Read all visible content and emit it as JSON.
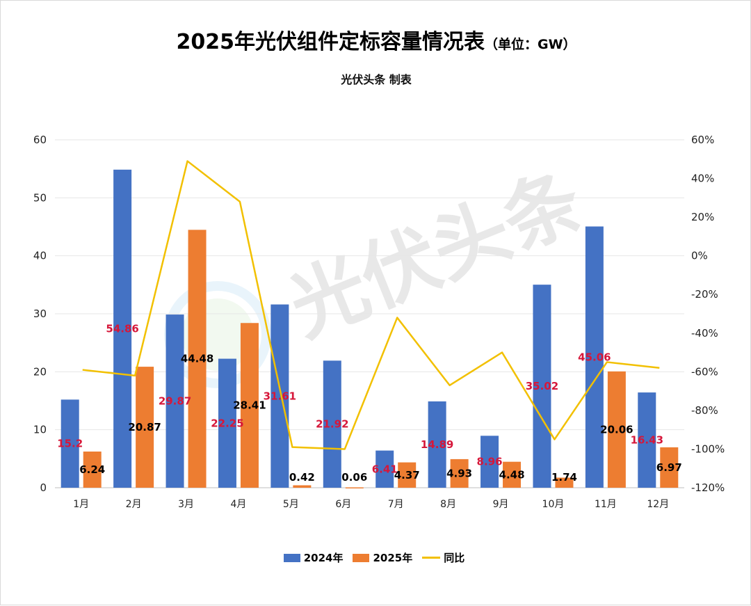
{
  "colors": {
    "series2024": "#4472c4",
    "series2025": "#ed7d31",
    "yoy": "#f2c000",
    "label2024": "#d6173a",
    "label2025": "#000000",
    "grid": "#e6e6e6"
  },
  "chart_data": {
    "type": "bar",
    "title": "2025年光伏组件定标容量情况表",
    "unit": "（单位：GW）",
    "subtitle": "光伏头条 制表",
    "watermark": "光伏头条",
    "categories": [
      "1月",
      "2月",
      "3月",
      "4月",
      "5月",
      "6月",
      "7月",
      "8月",
      "9月",
      "10月",
      "11月",
      "12月"
    ],
    "series": [
      {
        "name": "2024年",
        "type": "bar",
        "axis": "left",
        "values": [
          15.2,
          54.86,
          29.87,
          22.25,
          31.61,
          21.92,
          6.41,
          14.89,
          8.96,
          35.02,
          45.06,
          16.43
        ]
      },
      {
        "name": "2025年",
        "type": "bar",
        "axis": "left",
        "values": [
          6.24,
          20.87,
          44.48,
          28.41,
          0.42,
          0.06,
          4.37,
          4.93,
          4.48,
          1.74,
          20.06,
          6.97
        ]
      },
      {
        "name": "同比",
        "type": "line",
        "axis": "right",
        "values": [
          -59,
          -62,
          49,
          28,
          -99,
          -100,
          -32,
          -67,
          -50,
          -95,
          -55,
          -58
        ]
      }
    ],
    "ylim": [
      0,
      60
    ],
    "yticks": [
      0,
      10,
      20,
      30,
      40,
      50,
      60
    ],
    "y2lim": [
      -120,
      60
    ],
    "y2ticks": [
      "-120%",
      "-100%",
      "-80%",
      "-60%",
      "-40%",
      "-20%",
      "0%",
      "20%",
      "40%",
      "60%"
    ],
    "legend": "bottom",
    "grid": true
  }
}
